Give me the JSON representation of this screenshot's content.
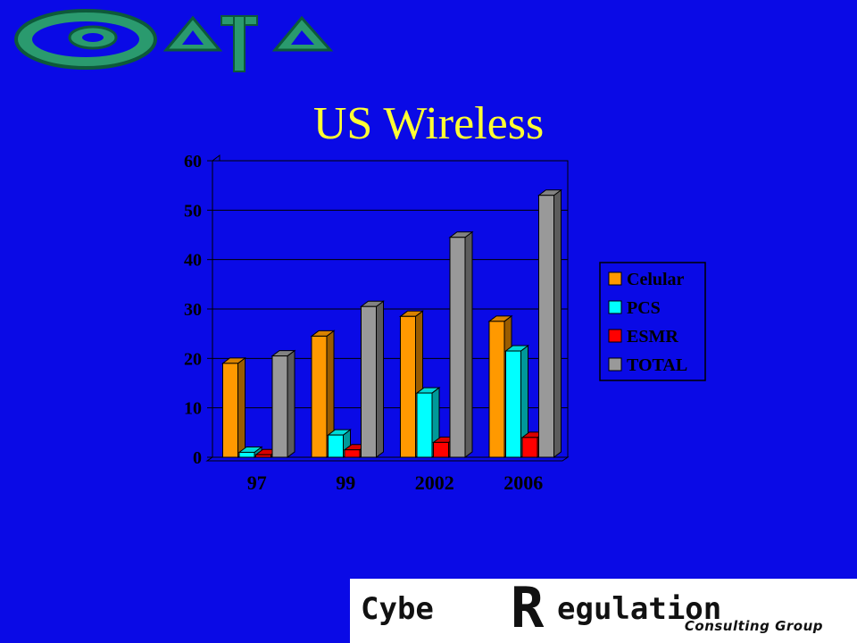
{
  "logo": {
    "icon": "at-delta-logo",
    "color": "#2a9a6e"
  },
  "title": "US Wireless",
  "chart_data": {
    "type": "bar",
    "categories": [
      "97",
      "99",
      "2002",
      "2006"
    ],
    "series": [
      {
        "name": "Celular",
        "values": [
          19,
          24.5,
          28.5,
          27.5
        ],
        "color": "#ff9900"
      },
      {
        "name": "PCS",
        "values": [
          1,
          4.5,
          13,
          21.5
        ],
        "color": "#00ffff"
      },
      {
        "name": "ESMR",
        "values": [
          0.5,
          1.5,
          3,
          4
        ],
        "color": "#ff0000"
      },
      {
        "name": "TOTAL",
        "values": [
          20.5,
          30.5,
          44.5,
          53
        ],
        "color": "#999999"
      }
    ],
    "yticks": [
      "0",
      "10",
      "20",
      "30",
      "40",
      "50",
      "60"
    ],
    "ylim": [
      0,
      60
    ],
    "grid": true,
    "legend": "right",
    "three_d": true
  },
  "brand": {
    "word1": "Cybe",
    "word2": "R",
    "word3": "egulation",
    "subtitle": "Consulting Group"
  }
}
